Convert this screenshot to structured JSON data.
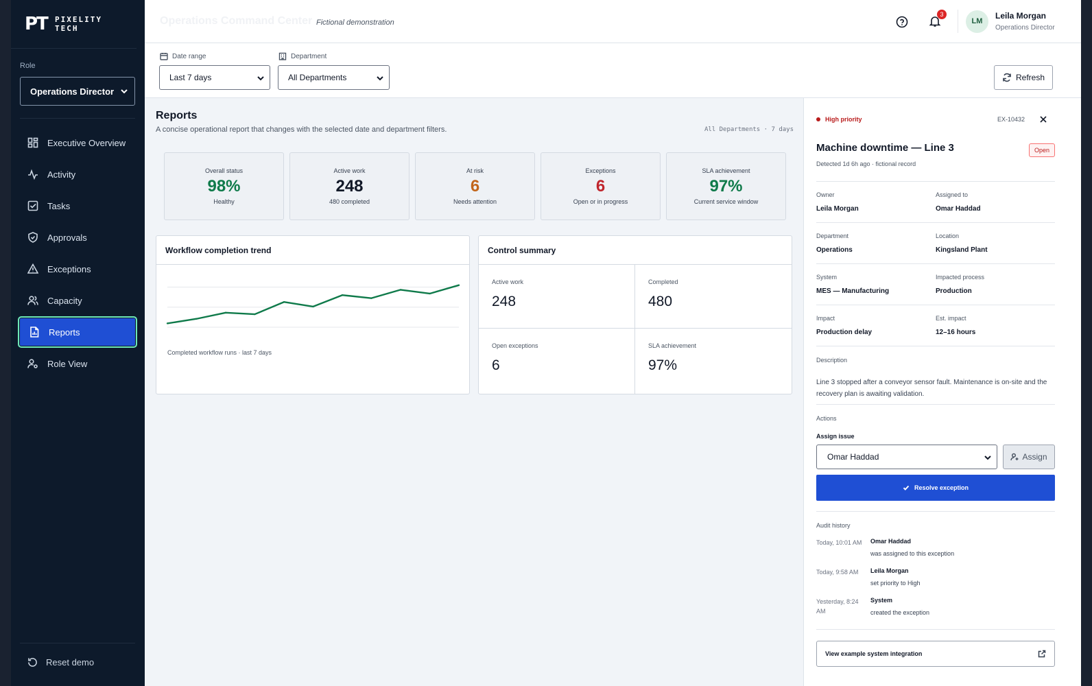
{
  "brand": {
    "mark": "PT",
    "name_line1": "PIXELITY",
    "name_line2": "TECH"
  },
  "role": {
    "label": "Role",
    "selected": "Operations Director"
  },
  "nav": [
    {
      "label": "Executive Overview",
      "icon": "grid-icon"
    },
    {
      "label": "Activity",
      "icon": "activity-icon"
    },
    {
      "label": "Tasks",
      "icon": "checkbox-icon"
    },
    {
      "label": "Approvals",
      "icon": "shield-icon"
    },
    {
      "label": "Exceptions",
      "icon": "warning-icon"
    },
    {
      "label": "Capacity",
      "icon": "users-icon"
    },
    {
      "label": "Reports",
      "icon": "report-icon",
      "active": true
    },
    {
      "label": "Role View",
      "icon": "user-gear-icon"
    }
  ],
  "reset_label": "Reset demo",
  "header": {
    "title": "Operations Command Center",
    "subtitle": "Fictional demonstration",
    "notifications": "3",
    "user": {
      "initials": "LM",
      "name": "Leila Morgan",
      "role": "Operations Director"
    }
  },
  "filters": {
    "date_label": "Date range",
    "date_value": "Last 7 days",
    "dept_label": "Department",
    "dept_value": "All Departments",
    "refresh_label": "Refresh"
  },
  "reports": {
    "title": "Reports",
    "description": "A concise operational report that changes with the selected date and department filters.",
    "context": "All Departments · 7 days",
    "kpis": [
      {
        "label": "Overall status",
        "value": "98%",
        "sub": "Healthy",
        "color": "#0f7a4a"
      },
      {
        "label": "Active work",
        "value": "248",
        "sub": "480 completed",
        "color": "#111827"
      },
      {
        "label": "At risk",
        "value": "6",
        "sub": "Needs attention",
        "color": "#c2661c"
      },
      {
        "label": "Exceptions",
        "value": "6",
        "sub": "Open or in progress",
        "color": "#c0262d"
      },
      {
        "label": "SLA achievement",
        "value": "97%",
        "sub": "Current service window",
        "color": "#0f7a4a"
      }
    ],
    "trend": {
      "title": "Workflow completion trend",
      "note": "Completed workflow runs · last 7 days"
    },
    "control": {
      "title": "Control summary",
      "cells": [
        {
          "label": "Active work",
          "value": "248"
        },
        {
          "label": "Completed",
          "value": "480"
        },
        {
          "label": "Open exceptions",
          "value": "6"
        },
        {
          "label": "SLA achievement",
          "value": "97%"
        }
      ]
    }
  },
  "chart_data": {
    "type": "line",
    "x": [
      1,
      2,
      3,
      4,
      5,
      6,
      7,
      8,
      9,
      10,
      11
    ],
    "values": [
      5,
      11,
      19,
      17,
      33,
      27,
      42,
      38,
      49,
      44,
      55
    ],
    "ylim": [
      0,
      70
    ],
    "grid": true,
    "color": "#0f7a4a"
  },
  "detail": {
    "priority": "High priority",
    "id": "EX-10432",
    "title": "Machine downtime — Line 3",
    "status": "Open",
    "meta": "Detected 1d 6h ago · fictional record",
    "fields": [
      {
        "label": "Owner",
        "value": "Leila Morgan"
      },
      {
        "label": "Assigned to",
        "value": "Omar Haddad"
      },
      {
        "label": "Department",
        "value": "Operations"
      },
      {
        "label": "Location",
        "value": "Kingsland Plant"
      },
      {
        "label": "System",
        "value": "MES — Manufacturing"
      },
      {
        "label": "Impacted process",
        "value": "Production"
      },
      {
        "label": "Impact",
        "value": "Production delay"
      },
      {
        "label": "Est. impact",
        "value": "12–16 hours"
      }
    ],
    "description_label": "Description",
    "description": "Line 3 stopped after a conveyor sensor fault. Maintenance is on-site and the recovery plan is awaiting validation.",
    "actions_label": "Actions",
    "assign_label": "Assign issue",
    "assign_value": "Omar Haddad",
    "assign_button": "Assign",
    "resolve_button": "Resolve exception",
    "audit_label": "Audit history",
    "audit": [
      {
        "time": "Today, 10:01 AM",
        "who": "Omar Haddad",
        "what": "was assigned to this exception"
      },
      {
        "time": "Today, 9:58 AM",
        "who": "Leila Morgan",
        "what": "set priority to High"
      },
      {
        "time": "Yesterday, 8:24 AM",
        "who": "System",
        "what": "created the exception"
      }
    ],
    "link_label": "View example system integration"
  }
}
